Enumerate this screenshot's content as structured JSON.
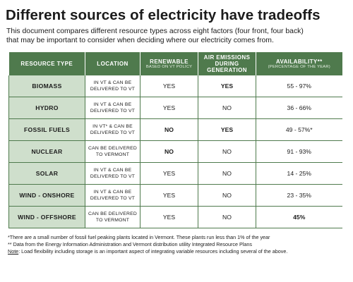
{
  "title": "Different sources of electricity have tradeoffs",
  "intro": {
    "line1": "This document compares different resource types across eight factors (four front, four back)",
    "line2": "that may be important to consider when deciding where our electricity comes from."
  },
  "table": {
    "headers": {
      "resource": "RESOURCE TYPE",
      "location": "LOCATION",
      "renewable": "RENEWABLE",
      "renewable_sub": "BASED ON VT POLICY",
      "emissions": "AIR EMISSIONS DURING GENERATION",
      "availability": "AVAILABILITY**",
      "availability_sub": "(PERCENTAGE OF THE YEAR)"
    },
    "rows": [
      {
        "resource": "BIOMASS",
        "location": "IN VT & CAN BE DELIVERED TO VT",
        "renewable": "YES",
        "emissions": "YES",
        "availability": "55 - 97%"
      },
      {
        "resource": "HYDRO",
        "location": "IN VT & CAN BE DELIVERED TO VT",
        "renewable": "YES",
        "emissions": "NO",
        "availability": "36 - 66%"
      },
      {
        "resource": "FOSSIL FUELS",
        "location": "IN VT* & CAN BE DELIVERED TO VT",
        "renewable": "NO",
        "emissions": "YES",
        "availability": "49 - 57%*"
      },
      {
        "resource": "NUCLEAR",
        "location": "CAN BE DELIVERED TO VERMONT",
        "renewable": "NO",
        "emissions": "NO",
        "availability": "91 - 93%"
      },
      {
        "resource": "SOLAR",
        "location": "IN VT & CAN BE DELIVERED TO VT",
        "renewable": "YES",
        "emissions": "NO",
        "availability": "14 - 25%"
      },
      {
        "resource": "WIND - ONSHORE",
        "location": "IN VT & CAN BE DELIVERED TO VT",
        "renewable": "YES",
        "emissions": "NO",
        "availability": "23 - 35%"
      },
      {
        "resource": "WIND - OFFSHORE",
        "location": "CAN BE DELIVERED TO VERMONT",
        "renewable": "YES",
        "emissions": "NO",
        "availability": "45%"
      }
    ]
  },
  "notes": {
    "note1": "*There are a small number of fossil fuel peaking plants located in Vermont. These plants run less than 1% of the year",
    "note2": "** Data from the Energy Information Administration and Vermont distribution utility Integrated Resource Plans",
    "note3_label": "Note",
    "note3_text": ": Load flexibility including storage is an important aspect of integrating variable resources including several of the above."
  }
}
